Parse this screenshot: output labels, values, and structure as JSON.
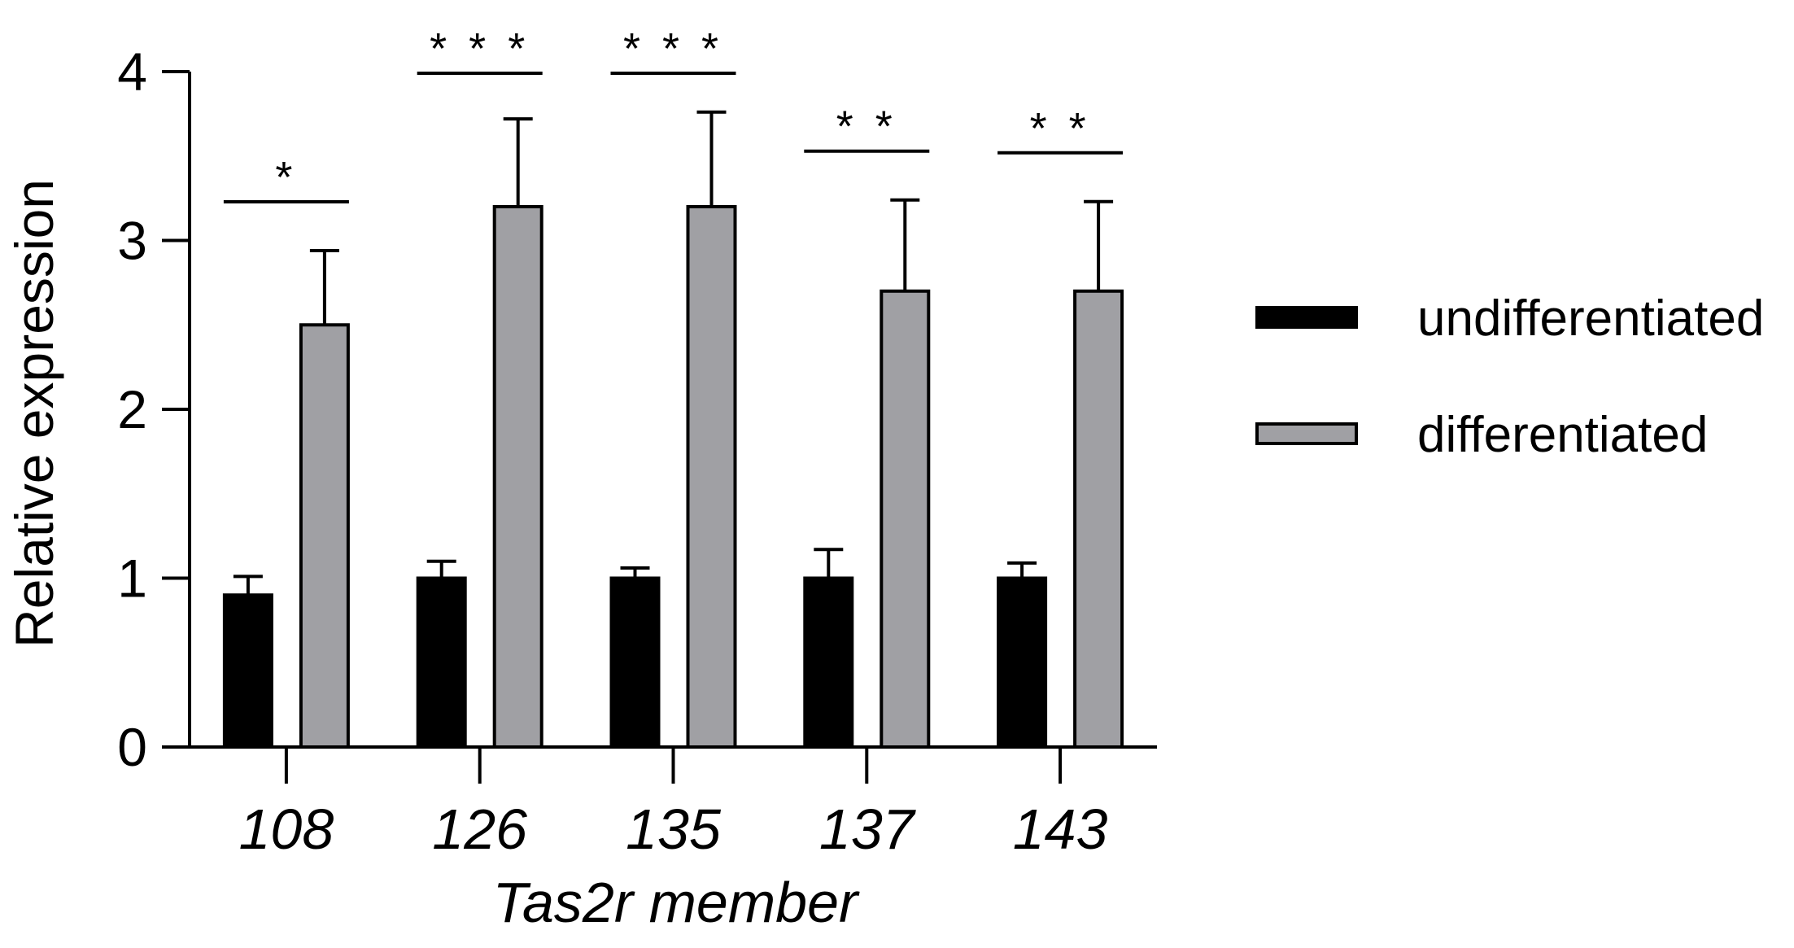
{
  "chart_data": {
    "type": "bar",
    "title": "",
    "xlabel": "Tas2r member",
    "ylabel": "Relative expression",
    "ylim": [
      0,
      4
    ],
    "yticks": [
      "0",
      "1",
      "2",
      "3",
      "4"
    ],
    "categories": [
      "108",
      "126",
      "135",
      "137",
      "143"
    ],
    "series": [
      {
        "name": "undifferentiated",
        "color": "#000000",
        "values": [
          0.9,
          1.0,
          1.0,
          1.0,
          1.0
        ],
        "errors": [
          0.11,
          0.1,
          0.06,
          0.17,
          0.09
        ]
      },
      {
        "name": "differentiated",
        "color": "#a0a0a4",
        "values": [
          2.5,
          3.2,
          3.2,
          2.7,
          2.7
        ],
        "errors": [
          0.44,
          0.52,
          0.56,
          0.54,
          0.53
        ]
      }
    ],
    "significance": [
      "*",
      "* * *",
      "* * *",
      "* *",
      "* *"
    ],
    "grid": false,
    "legend_position": "right"
  }
}
